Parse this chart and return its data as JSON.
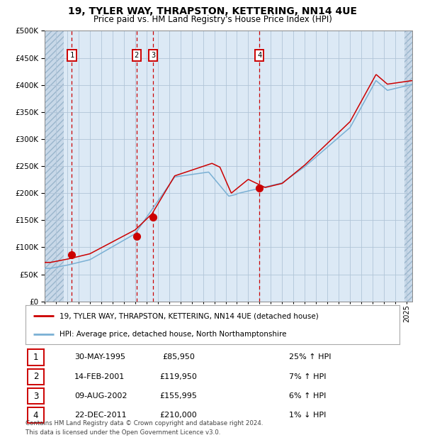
{
  "title": "19, TYLER WAY, THRAPSTON, KETTERING, NN14 4UE",
  "subtitle": "Price paid vs. HM Land Registry's House Price Index (HPI)",
  "legend_line1": "19, TYLER WAY, THRAPSTON, KETTERING, NN14 4UE (detached house)",
  "legend_line2": "HPI: Average price, detached house, North Northamptonshire",
  "footer1": "Contains HM Land Registry data © Crown copyright and database right 2024.",
  "footer2": "This data is licensed under the Open Government Licence v3.0.",
  "table": [
    {
      "num": 1,
      "date": "30-MAY-1995",
      "price": "£85,950",
      "pct": "25%",
      "dir": "↑"
    },
    {
      "num": 2,
      "date": "14-FEB-2001",
      "price": "£119,950",
      "pct": "7%",
      "dir": "↑"
    },
    {
      "num": 3,
      "date": "09-AUG-2002",
      "price": "£155,995",
      "pct": "6%",
      "dir": "↑"
    },
    {
      "num": 4,
      "date": "22-DEC-2011",
      "price": "£210,000",
      "pct": "1%",
      "dir": "↓"
    }
  ],
  "sale_dates_num": [
    1995.41,
    2001.12,
    2002.6,
    2011.98
  ],
  "sale_prices": [
    85950,
    119950,
    155995,
    210000
  ],
  "hpi_color": "#7ab0d4",
  "price_color": "#cc0000",
  "bg_color": "#dce9f5",
  "hatched_bg": "#c8d8e8",
  "grid_color": "#b0c4d8",
  "vline_color": "#cc0000",
  "ylim": [
    0,
    500000
  ],
  "yticks": [
    0,
    50000,
    100000,
    150000,
    200000,
    250000,
    300000,
    350000,
    400000,
    450000,
    500000
  ],
  "xlim_start": 1993,
  "xlim_end": 2025.5
}
